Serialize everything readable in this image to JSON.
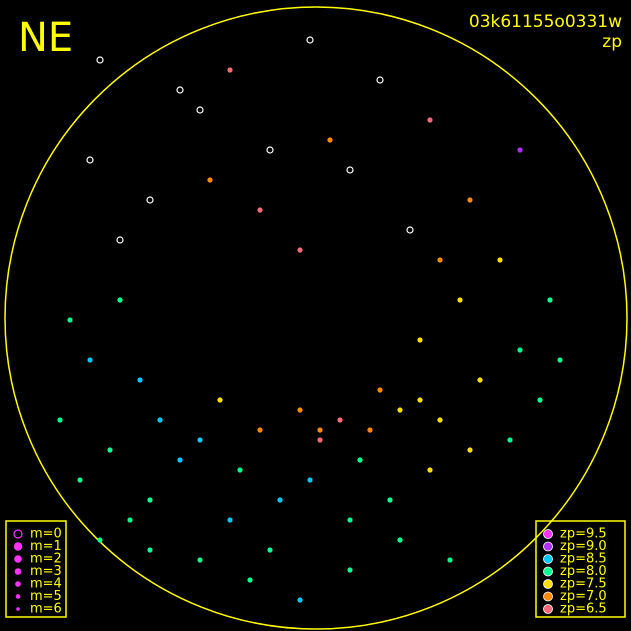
{
  "header": {
    "corner": "NE",
    "frame_id": "03k61155o0331w",
    "mode": "zp"
  },
  "magnitude_legend": [
    "m=0",
    "m=1",
    "m=2",
    "m=3",
    "m=4",
    "m=5",
    "m=6"
  ],
  "zp_legend": [
    {
      "value": 9.5,
      "label": "zp=9.5",
      "color": "#ff33ff"
    },
    {
      "value": 9.0,
      "label": "zp=9.0",
      "color": "#b030ff"
    },
    {
      "value": 8.5,
      "label": "zp=8.5",
      "color": "#00c8ff"
    },
    {
      "value": 8.0,
      "label": "zp=8.0",
      "color": "#00ff90"
    },
    {
      "value": 7.5,
      "label": "zp=7.5",
      "color": "#ffe000"
    },
    {
      "value": 7.0,
      "label": "zp=7.0",
      "color": "#ff8a00"
    },
    {
      "value": 6.5,
      "label": "zp=6.5",
      "color": "#ff6a7a"
    }
  ],
  "stars": {
    "x": [
      100,
      180,
      230,
      270,
      330,
      380,
      430,
      150,
      210,
      300,
      350,
      470,
      120,
      260,
      410,
      200,
      310,
      520,
      90,
      440,
      70,
      90,
      120,
      60,
      140,
      110,
      80,
      160,
      200,
      240,
      280,
      320,
      360,
      400,
      440,
      480,
      520,
      550,
      500,
      460,
      420,
      380,
      340,
      300,
      260,
      220,
      180,
      150,
      130,
      100,
      230,
      270,
      310,
      350,
      390,
      430,
      470,
      510,
      540,
      560,
      250,
      300,
      350,
      400,
      450,
      200,
      150,
      320,
      370,
      420
    ],
    "y": [
      60,
      90,
      70,
      150,
      140,
      80,
      120,
      200,
      180,
      250,
      170,
      200,
      240,
      210,
      230,
      110,
      40,
      150,
      160,
      260,
      320,
      360,
      300,
      420,
      380,
      450,
      480,
      420,
      440,
      470,
      500,
      430,
      460,
      410,
      420,
      380,
      350,
      300,
      260,
      300,
      340,
      390,
      420,
      410,
      430,
      400,
      460,
      500,
      520,
      540,
      520,
      550,
      480,
      520,
      500,
      470,
      450,
      440,
      400,
      360,
      580,
      600,
      570,
      540,
      560,
      560,
      550,
      440,
      430,
      400
    ],
    "zp": [
      null,
      null,
      6.5,
      null,
      7.0,
      null,
      6.5,
      null,
      7.0,
      6.5,
      null,
      7.0,
      null,
      6.5,
      null,
      null,
      null,
      9.0,
      null,
      7.0,
      8.0,
      8.5,
      8.0,
      8.0,
      8.5,
      8.0,
      8.0,
      8.5,
      8.5,
      8.0,
      8.5,
      7.0,
      8.0,
      7.5,
      7.5,
      7.5,
      8.0,
      8.0,
      7.5,
      7.5,
      7.5,
      7.0,
      6.5,
      7.0,
      7.0,
      7.5,
      8.5,
      8.0,
      8.0,
      8.0,
      8.5,
      8.0,
      8.5,
      8.0,
      8.0,
      7.5,
      7.5,
      8.0,
      8.0,
      8.0,
      8.0,
      8.5,
      8.0,
      8.0,
      8.0,
      8.0,
      8.0,
      6.5,
      7.0,
      7.5
    ]
  }
}
